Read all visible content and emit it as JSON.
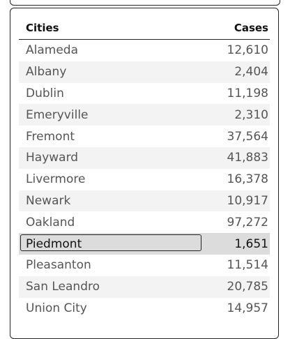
{
  "table": {
    "headers": {
      "city": "Cities",
      "cases": "Cases"
    },
    "rows": [
      {
        "city": "Alameda",
        "cases": "12,610"
      },
      {
        "city": "Albany",
        "cases": "2,404"
      },
      {
        "city": "Dublin",
        "cases": "11,198"
      },
      {
        "city": "Emeryville",
        "cases": "2,310"
      },
      {
        "city": "Fremont",
        "cases": "37,564"
      },
      {
        "city": "Hayward",
        "cases": "41,883"
      },
      {
        "city": "Livermore",
        "cases": "16,378"
      },
      {
        "city": "Newark",
        "cases": "10,917"
      },
      {
        "city": "Oakland",
        "cases": "97,272"
      },
      {
        "city": "Piedmont",
        "cases": "1,651"
      },
      {
        "city": "Pleasanton",
        "cases": "11,514"
      },
      {
        "city": "San Leandro",
        "cases": "20,785"
      },
      {
        "city": "Union City",
        "cases": "14,957"
      }
    ],
    "selected_city": "Piedmont"
  }
}
